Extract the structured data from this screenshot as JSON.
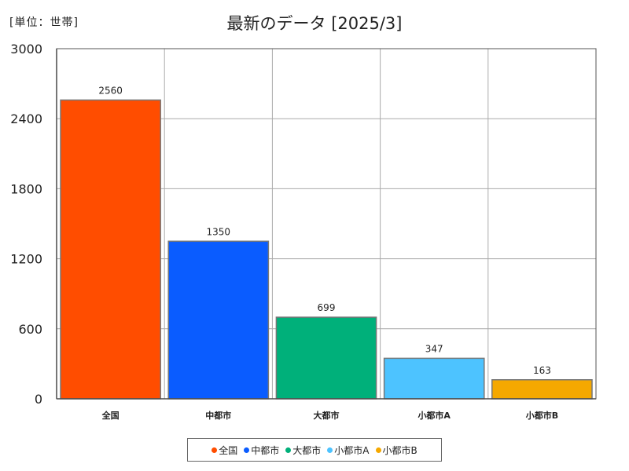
{
  "unit_label": "[単位：世帯]",
  "title": "最新のデータ [2025/3]",
  "chart_data": {
    "type": "bar",
    "title": "最新のデータ [2025/3]",
    "unit": "[単位：世帯]",
    "categories": [
      "全国",
      "中都市",
      "大都市",
      "小都市A",
      "小都市B"
    ],
    "values": [
      2560,
      1350,
      699,
      347,
      163
    ],
    "colors": [
      "#ff4d00",
      "#0a5cff",
      "#00b07a",
      "#4dc3ff",
      "#f5a800"
    ],
    "ylim": [
      0,
      3000
    ],
    "yticks": [
      0,
      600,
      1200,
      1800,
      2400,
      3000
    ],
    "grid": true,
    "legend_position": "bottom"
  }
}
